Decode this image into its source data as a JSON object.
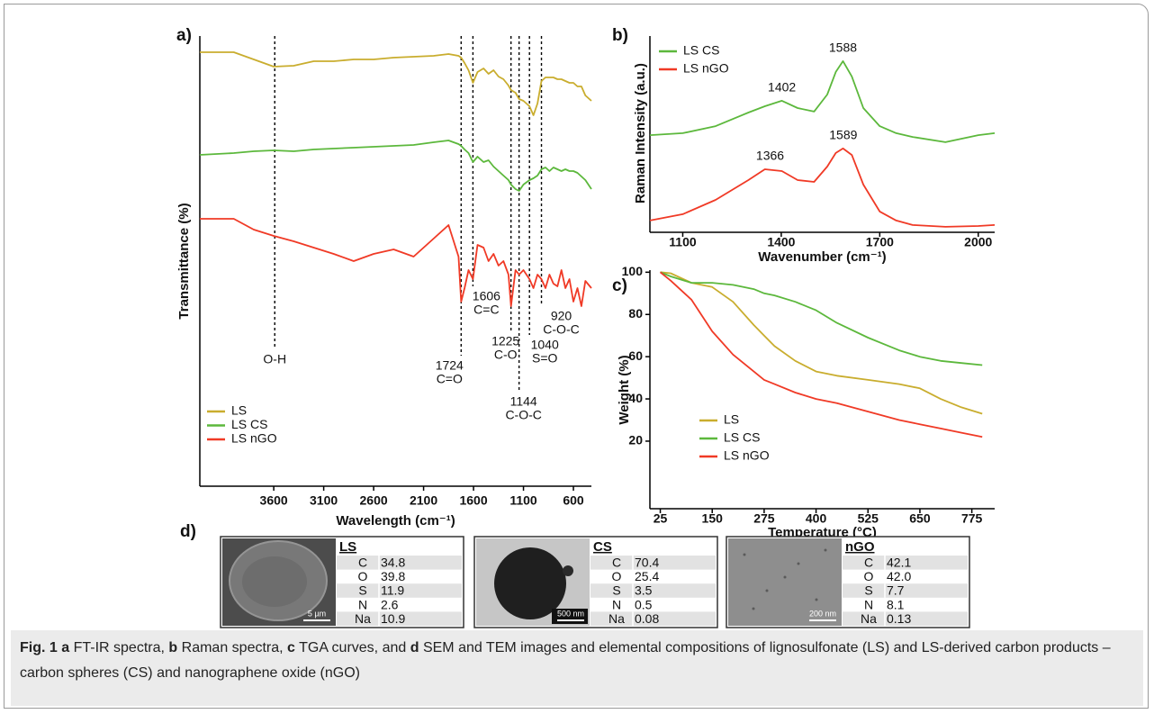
{
  "chart_data": [
    {
      "type": "line",
      "label": "a)",
      "x_label": "Wavelength (cm⁻¹)",
      "y_label": "Transmittance (%)",
      "x": [
        4340,
        4000,
        3800,
        3600,
        3400,
        3200,
        3000,
        2800,
        2600,
        2400,
        2200,
        2000,
        1850,
        1750,
        1724,
        1690,
        1650,
        1606,
        1560,
        1500,
        1450,
        1400,
        1350,
        1300,
        1250,
        1225,
        1180,
        1144,
        1100,
        1040,
        1000,
        960,
        920,
        880,
        840,
        800,
        760,
        720,
        680,
        640,
        600,
        560,
        520,
        480,
        420
      ],
      "xlim": [
        4340,
        420
      ],
      "xticks": [
        3600,
        3100,
        2600,
        2100,
        1600,
        1100,
        600
      ],
      "ylim": [
        0,
        100
      ],
      "legend": "lower left",
      "series": [
        {
          "name": "LS",
          "color": "#c9ad2e",
          "values": [
            96.4,
            96.4,
            94.8,
            93.2,
            93.4,
            94.4,
            94.4,
            94.8,
            94.8,
            95.2,
            95.4,
            95.6,
            96,
            95.6,
            95.2,
            94,
            92.4,
            89.6,
            92,
            92.8,
            91.6,
            92.4,
            91,
            90.4,
            89,
            88,
            87.4,
            86,
            85.6,
            84.4,
            82.4,
            85,
            90,
            90.8,
            90.8,
            90.8,
            90.4,
            90.4,
            90,
            89.6,
            89.6,
            88.8,
            88.8,
            86.8,
            85.6
          ]
        },
        {
          "name": "LS CS",
          "color": "#5cb83c",
          "values": [
            73.6,
            74,
            74.4,
            74.6,
            74.4,
            74.8,
            75,
            75.2,
            75.4,
            75.6,
            75.8,
            76.4,
            76.8,
            76,
            75.6,
            74.8,
            74,
            72,
            73.2,
            72,
            72.4,
            71,
            70,
            69,
            68,
            67,
            66,
            65.6,
            67,
            68,
            68.4,
            69,
            70.4,
            70.8,
            70,
            70.8,
            70.4,
            70,
            70.4,
            70,
            70,
            69.6,
            68.8,
            68,
            66
          ]
        },
        {
          "name": "LS nGO",
          "color": "#f03a26",
          "values": [
            59.4,
            59.4,
            57,
            55.6,
            54.4,
            53,
            51.6,
            50,
            51.6,
            52.6,
            51,
            55,
            58,
            51,
            41,
            44,
            48,
            46,
            53.6,
            53,
            50,
            51.6,
            49,
            50,
            47,
            40,
            48,
            47,
            48,
            46,
            44,
            47,
            46,
            44,
            47,
            45,
            44.4,
            48,
            44,
            46,
            41,
            44,
            40,
            45.6,
            44
          ]
        }
      ],
      "annotations": [
        {
          "x": 3590,
          "text": "O-H"
        },
        {
          "x": 1724,
          "text": "C=O"
        },
        {
          "x": 1606,
          "text": "C=C"
        },
        {
          "x": 1225,
          "text": "C-O"
        },
        {
          "x": 1144,
          "text": "C-O-C"
        },
        {
          "x": 1040,
          "text": "S=O"
        },
        {
          "x": 920,
          "text": "C-O-C"
        }
      ]
    },
    {
      "type": "line",
      "label": "b)",
      "x_label": "Wavenumber (cm⁻¹)",
      "y_label": "Raman Intensity (a.u.)",
      "x": [
        1000,
        1100,
        1200,
        1300,
        1350,
        1402,
        1450,
        1500,
        1540,
        1566,
        1588,
        1615,
        1650,
        1700,
        1750,
        1800,
        1900,
        2000,
        2050
      ],
      "xlim": [
        1000,
        2050
      ],
      "xticks": [
        1100,
        1400,
        1700,
        2000
      ],
      "ylim": [
        0,
        100
      ],
      "legend": "upper left",
      "series": [
        {
          "name": "LS CS",
          "color": "#5cb83c",
          "values": [
            49.5,
            50.5,
            54.1,
            61,
            64.2,
            67,
            63.3,
            61.5,
            70.2,
            81.7,
            87.2,
            79.4,
            63.3,
            54.1,
            50.5,
            48.6,
            45.9,
            49.5,
            50.5
          ]
        },
        {
          "name": "LS nGO",
          "color": "#f03a26",
          "values": [
            6,
            9.2,
            16.5,
            26.6,
            32.1,
            31.2,
            26.6,
            25.7,
            33.5,
            40.4,
            42.7,
            39.4,
            24.3,
            10.6,
            6,
            3.7,
            2.8,
            3.2,
            3.7
          ]
        }
      ],
      "peaks": [
        {
          "x": 1402,
          "y": 67
        },
        {
          "x": 1588,
          "y": 87.2
        },
        {
          "x": 1366,
          "y": 32.1
        },
        {
          "x": 1589,
          "y": 42.7
        }
      ]
    },
    {
      "type": "line",
      "label": "c)",
      "x_label": "Temperature (°C)",
      "y_label": "Weight (%)",
      "x": [
        25,
        50,
        100,
        150,
        200,
        250,
        275,
        300,
        350,
        400,
        450,
        525,
        600,
        650,
        700,
        750,
        800
      ],
      "xlim": [
        0,
        830
      ],
      "xticks": [
        25,
        150,
        275,
        400,
        525,
        650,
        775
      ],
      "ylim": [
        -12,
        101
      ],
      "yticks": [
        20,
        40,
        60,
        80,
        100
      ],
      "legend": "lower left",
      "series": [
        {
          "name": "LS",
          "color": "#c9ad2e",
          "values": [
            100,
            99.5,
            95,
            93,
            86,
            75,
            70,
            65,
            58,
            53,
            51,
            49,
            47,
            45,
            40,
            36,
            33
          ]
        },
        {
          "name": "LS CS",
          "color": "#5cb83c",
          "values": [
            100,
            98,
            95,
            95,
            94,
            92,
            90,
            89,
            86,
            82,
            76,
            69,
            63,
            60,
            58,
            57,
            56
          ]
        },
        {
          "name": "LS nGO",
          "color": "#f03a26",
          "values": [
            100,
            96,
            87,
            72,
            61,
            53,
            49,
            47,
            43,
            40,
            38,
            34,
            30,
            28,
            26,
            24,
            22
          ]
        }
      ]
    }
  ],
  "panel_d": {
    "label": "d)",
    "items": [
      {
        "name": "LS",
        "scale_bar": "5 µm",
        "rows": [
          [
            "C",
            "34.8"
          ],
          [
            "O",
            "39.8"
          ],
          [
            "S",
            "11.9"
          ],
          [
            "N",
            "2.6"
          ],
          [
            "Na",
            "10.9"
          ]
        ]
      },
      {
        "name": "CS",
        "scale_bar": "500 nm",
        "rows": [
          [
            "C",
            "70.4"
          ],
          [
            "O",
            "25.4"
          ],
          [
            "S",
            "3.5"
          ],
          [
            "N",
            "0.5"
          ],
          [
            "Na",
            "0.08"
          ]
        ]
      },
      {
        "name": "nGO",
        "scale_bar": "200 nm",
        "rows": [
          [
            "C",
            "42.1"
          ],
          [
            "O",
            "42.0"
          ],
          [
            "S",
            "7.7"
          ],
          [
            "N",
            "8.1"
          ],
          [
            "Na",
            "0.13"
          ]
        ]
      }
    ]
  },
  "caption": {
    "figure": "Fig. 1",
    "parts": [
      {
        "key": "a",
        "text": "FT-IR spectra,"
      },
      {
        "key": "b",
        "text": "Raman spectra,"
      },
      {
        "key": "c",
        "text": "TGA curves, and"
      },
      {
        "key": "d",
        "text": "SEM and TEM images and elemental compositions of lignosulfonate (LS) and LS-derived carbon products – carbon spheres (CS) and nanographene oxide (nGO)"
      }
    ]
  }
}
